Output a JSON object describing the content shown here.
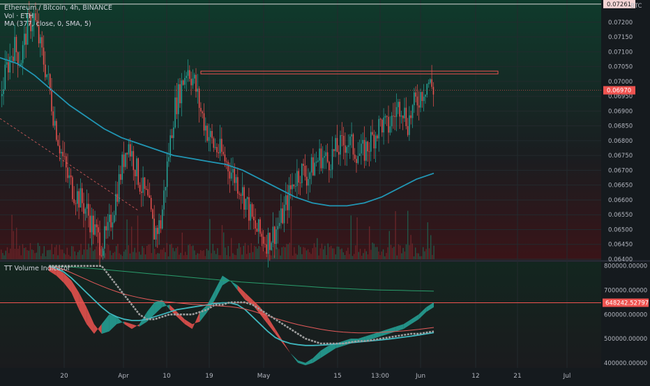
{
  "header": {
    "symbol_line": "Ethereum / Bitcoin, 4h, BINANCE",
    "vol_label": "Vol · ETH",
    "ma_label": "MA (377, close, 0, SMA, 5)",
    "currency": "BTC"
  },
  "indicator": {
    "name": "TT Volume Indicator"
  },
  "chart_data": [
    {
      "type": "candlestick",
      "pane": "price",
      "currency": "BTC",
      "y_range": [
        0.064,
        0.0727
      ],
      "y_ticks": [
        "0.07200",
        "0.07150",
        "0.07100",
        "0.07050",
        "0.07000",
        "0.06950",
        "0.06900",
        "0.06850",
        "0.06800",
        "0.06750",
        "0.06700",
        "0.06650",
        "0.06600",
        "0.06550",
        "0.06500",
        "0.06450",
        "0.06400"
      ],
      "x_ticks": [
        "20",
        "Apr",
        "10",
        "19",
        "May",
        "15",
        "13:00",
        "Jun",
        "12",
        "21",
        "Jul"
      ],
      "price_labels": [
        {
          "value": "0.07261",
          "color": "#f5d5d5",
          "text_color": "#222222"
        },
        {
          "value": "0.06970",
          "color": "#ef5350",
          "text_color": "#ffffff"
        }
      ],
      "horizontal_lines": [
        {
          "value": 0.07261,
          "color": "#d9d9d9"
        },
        {
          "value": 0.0703,
          "color": "#ef5350",
          "from": "Apr 18",
          "to": "Jun 14",
          "style": "box"
        }
      ],
      "close_path": [
        0.0695,
        0.0705,
        0.0712,
        0.0707,
        0.0718,
        0.0722,
        0.0711,
        0.0702,
        0.0688,
        0.0677,
        0.0668,
        0.0663,
        0.066,
        0.0656,
        0.065,
        0.0645,
        0.0648,
        0.0658,
        0.0669,
        0.068,
        0.0673,
        0.0665,
        0.066,
        0.0649,
        0.0652,
        0.0672,
        0.069,
        0.0698,
        0.0705,
        0.07,
        0.069,
        0.0683,
        0.0678,
        0.0676,
        0.0672,
        0.0668,
        0.0664,
        0.0658,
        0.0651,
        0.0648,
        0.0646,
        0.0649,
        0.0653,
        0.066,
        0.0667,
        0.067,
        0.0668,
        0.0672,
        0.0675,
        0.0673,
        0.0676,
        0.0678,
        0.068,
        0.0677,
        0.0675,
        0.0678,
        0.0682,
        0.0686,
        0.0684,
        0.0689,
        0.0693,
        0.0686,
        0.0692,
        0.0696,
        0.07,
        0.0697
      ],
      "ma_path": [
        0.0708,
        0.0706,
        0.0702,
        0.0697,
        0.0692,
        0.0688,
        0.0684,
        0.0681,
        0.0679,
        0.0677,
        0.0675,
        0.0674,
        0.0673,
        0.0672,
        0.067,
        0.0667,
        0.0664,
        0.0661,
        0.0659,
        0.0658,
        0.0658,
        0.0659,
        0.0661,
        0.0664,
        0.0667,
        0.0669
      ],
      "ma_color": "#2196b4"
    },
    {
      "type": "line",
      "pane": "indicator",
      "name": "TT Volume Indicator",
      "y_range": [
        385000,
        805000
      ],
      "y_ticks": [
        "800000.00000",
        "700000.00000",
        "600000.00000",
        "500000.00000",
        "400000.00000"
      ],
      "value_label": "648242.52797",
      "reference_line": 648242.52797,
      "series": [
        {
          "role": "fast-upper",
          "color": "#26a69a",
          "values": [
            780000,
            760000,
            730000,
            690000,
            620000,
            560000,
            520000,
            560000,
            600000,
            590000,
            560000,
            540000,
            560000,
            610000,
            650000,
            660000,
            620000,
            590000,
            560000,
            540000,
            610000,
            640000,
            700000,
            760000,
            740000,
            700000,
            660000,
            640000,
            600000,
            560000,
            520000,
            480000,
            440000,
            410000,
            400000,
            420000,
            450000,
            470000,
            480000,
            490000,
            500000,
            500000,
            510000,
            520000,
            530000,
            540000,
            550000,
            560000,
            580000,
            600000,
            630000,
            650000
          ]
        },
        {
          "role": "fast-lower",
          "color": "#ef5350",
          "values": [
            800000,
            790000,
            770000,
            740000,
            690000,
            630000,
            560000,
            520000,
            530000,
            560000,
            570000,
            560000,
            550000,
            570000,
            600000,
            630000,
            640000,
            610000,
            580000,
            560000,
            570000,
            610000,
            660000,
            720000,
            740000,
            720000,
            690000,
            660000,
            630000,
            590000,
            540000,
            490000,
            440000,
            400000,
            390000,
            400000,
            420000,
            440000,
            460000,
            470000,
            480000,
            490000,
            490000,
            500000,
            510000,
            520000,
            530000,
            540000,
            560000,
            580000,
            610000,
            630000
          ]
        },
        {
          "role": "teal-smooth",
          "color": "#3fb8bf",
          "values": [
            800000,
            790000,
            775000,
            750000,
            720000,
            690000,
            660000,
            630000,
            605000,
            590000,
            580000,
            575000,
            575000,
            580000,
            590000,
            600000,
            610000,
            620000,
            625000,
            630000,
            635000,
            640000,
            645000,
            648000,
            648000,
            640000,
            620000,
            590000,
            560000,
            530000,
            505000,
            490000,
            480000,
            475000,
            472000,
            472000,
            473000,
            475000,
            478000,
            480000,
            483000,
            486000,
            489000,
            492000,
            495000,
            498000,
            502000,
            506000,
            510000,
            515000,
            520000,
            525000
          ]
        },
        {
          "role": "slow-red",
          "color": "#e55a5a",
          "values": [
            800000,
            795000,
            785000,
            772000,
            758000,
            744000,
            730000,
            717000,
            705000,
            694000,
            684000,
            676000,
            669000,
            663000,
            658000,
            654000,
            651000,
            648000,
            645000,
            642000,
            640000,
            638000,
            636000,
            634000,
            632000,
            628000,
            622000,
            614000,
            604000,
            594000,
            584000,
            575000,
            566000,
            558000,
            551000,
            545000,
            539000,
            534000,
            530000,
            527000,
            525000,
            524000,
            524000,
            525000,
            526000,
            528000,
            530000,
            532000,
            535000,
            538000,
            542000,
            546000
          ]
        },
        {
          "role": "slow-green",
          "color": "#2a9d6c",
          "values": [
            800000,
            798000,
            796000,
            793000,
            790000,
            786000,
            782000,
            778000,
            774000,
            770000,
            766000,
            762000,
            758000,
            754000,
            750000,
            746000,
            742000,
            738000,
            734000,
            731000,
            728000,
            725000,
            722000,
            719000,
            716000,
            713000,
            710000,
            708000,
            706000,
            704000,
            702000,
            701000,
            700000,
            699000,
            698000,
            697000,
            696000
          ]
        },
        {
          "role": "grey-step",
          "color": "#9e9e9e",
          "values": [
            800000,
            800000,
            800000,
            800000,
            800000,
            800000,
            800000,
            800000,
            760000,
            720000,
            680000,
            640000,
            600000,
            580000,
            580000,
            590000,
            600000,
            600000,
            600000,
            600000,
            610000,
            620000,
            640000,
            640000,
            650000,
            650000,
            650000,
            640000,
            620000,
            600000,
            580000,
            560000,
            540000,
            520000,
            500000,
            490000,
            480000,
            480000,
            480000,
            480000,
            485000,
            490000,
            490000,
            495000,
            500000,
            505000,
            510000,
            515000,
            520000,
            520000,
            525000,
            530000
          ]
        }
      ]
    }
  ]
}
